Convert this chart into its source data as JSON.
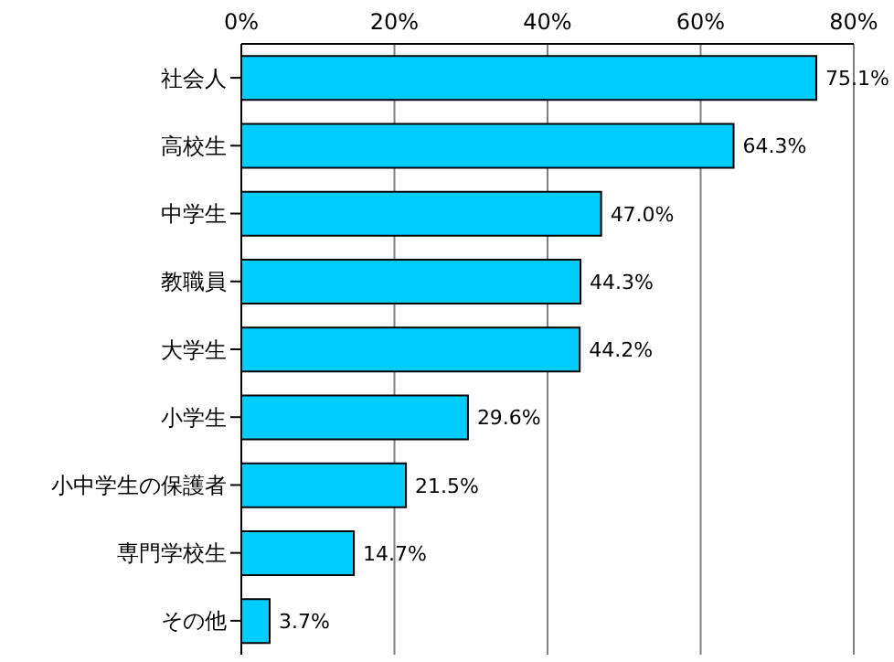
{
  "chart_data": {
    "type": "bar",
    "orientation": "horizontal",
    "categories": [
      "社会人",
      "高校生",
      "中学生",
      "教職員",
      "大学生",
      "小学生",
      "小中学生の保護者",
      "専門学校生",
      "その他"
    ],
    "values": [
      75.1,
      64.3,
      47.0,
      44.3,
      44.2,
      29.6,
      21.5,
      14.7,
      3.7
    ],
    "value_labels": [
      "75.1%",
      "64.3%",
      "47.0%",
      "44.3%",
      "44.2%",
      "29.6%",
      "21.5%",
      "14.7%",
      "3.7%"
    ],
    "color": "#00ccff",
    "xlim": [
      0,
      80
    ],
    "xticks": [
      {
        "value": 0,
        "label": "0%"
      },
      {
        "value": 20,
        "label": "20%"
      },
      {
        "value": 40,
        "label": "40%"
      },
      {
        "value": 60,
        "label": "60%"
      },
      {
        "value": 80,
        "label": "80%"
      }
    ],
    "grid": "x"
  }
}
